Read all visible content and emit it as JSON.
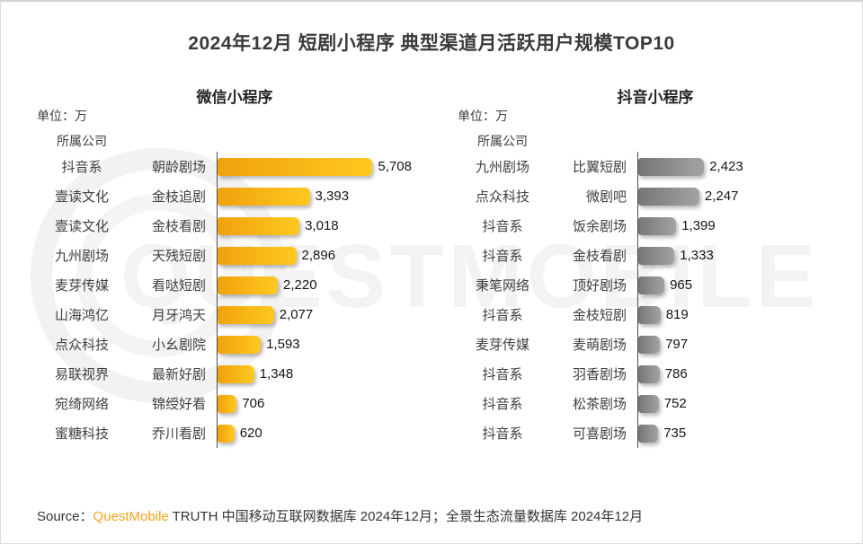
{
  "title": "2024年12月 短剧小程序 典型渠道月活跃用户规模TOP10",
  "watermark": "QUESTMOBILE",
  "source": {
    "prefix": "Source：",
    "brand": "QuestMobile",
    "rest": " TRUTH 中国移动互联网数据库 2024年12月；全景生态流量数据库 2024年12月"
  },
  "chart_data": [
    {
      "type": "bar",
      "orientation": "horizontal",
      "title": "微信小程序",
      "unit_label": "单位：万",
      "company_header": "所属公司",
      "value_unit": "万",
      "legend": "none",
      "grid": false,
      "xlim": [
        0,
        6000
      ],
      "bar_gradient": [
        "#F0A10C",
        "#FFC91F"
      ],
      "rows": [
        {
          "company": "抖音系",
          "name": "朝龄剧场",
          "value": 5708,
          "label": "5,708"
        },
        {
          "company": "壹读文化",
          "name": "金枝追剧",
          "value": 3393,
          "label": "3,393"
        },
        {
          "company": "壹读文化",
          "name": "金枝看剧",
          "value": 3018,
          "label": "3,018"
        },
        {
          "company": "九州剧场",
          "name": "天残短剧",
          "value": 2896,
          "label": "2,896"
        },
        {
          "company": "麦芽传媒",
          "name": "看哒短剧",
          "value": 2220,
          "label": "2,220"
        },
        {
          "company": "山海鸿亿",
          "name": "月牙鸿天",
          "value": 2077,
          "label": "2,077"
        },
        {
          "company": "点众科技",
          "name": "小幺剧院",
          "value": 1593,
          "label": "1,593"
        },
        {
          "company": "易联视界",
          "name": "最新好剧",
          "value": 1348,
          "label": "1,348"
        },
        {
          "company": "宛绮网络",
          "name": "锦绶好看",
          "value": 706,
          "label": "706"
        },
        {
          "company": "蜜糖科技",
          "name": "乔川看剧",
          "value": 620,
          "label": "620"
        }
      ]
    },
    {
      "type": "bar",
      "orientation": "horizontal",
      "title": "抖音小程序",
      "unit_label": "单位：万",
      "company_header": "所属公司",
      "value_unit": "万",
      "legend": "none",
      "grid": false,
      "xlim": [
        0,
        6000
      ],
      "bar_gradient": [
        "#767676",
        "#A3A3A3"
      ],
      "rows": [
        {
          "company": "九州剧场",
          "name": "比翼短剧",
          "value": 2423,
          "label": "2,423"
        },
        {
          "company": "点众科技",
          "name": "微剧吧",
          "value": 2247,
          "label": "2,247"
        },
        {
          "company": "抖音系",
          "name": "饭余剧场",
          "value": 1399,
          "label": "1,399"
        },
        {
          "company": "抖音系",
          "name": "金枝看剧",
          "value": 1333,
          "label": "1,333"
        },
        {
          "company": "秉笔网络",
          "name": "顶好剧场",
          "value": 965,
          "label": "965"
        },
        {
          "company": "抖音系",
          "name": "金枝短剧",
          "value": 819,
          "label": "819"
        },
        {
          "company": "麦芽传媒",
          "name": "麦萌剧场",
          "value": 797,
          "label": "797"
        },
        {
          "company": "抖音系",
          "name": "羽香剧场",
          "value": 786,
          "label": "786"
        },
        {
          "company": "抖音系",
          "name": "松茶剧场",
          "value": 752,
          "label": "752"
        },
        {
          "company": "抖音系",
          "name": "可喜剧场",
          "value": 735,
          "label": "735"
        }
      ]
    }
  ]
}
